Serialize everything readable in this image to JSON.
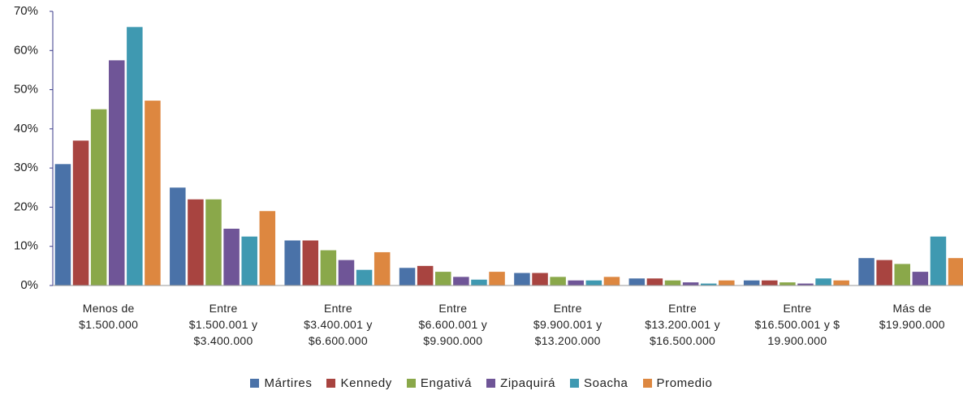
{
  "chart_data": {
    "type": "bar",
    "categories": [
      "Menos de\n$1.500.000",
      "Entre\n$1.500.001 y\n$3.400.000",
      "Entre\n$3.400.001 y\n$6.600.000",
      "Entre\n$6.600.001 y\n$9.900.000",
      "Entre\n$9.900.001 y\n$13.200.000",
      "Entre\n$13.200.001 y\n$16.500.000",
      "Entre\n$16.500.001 y $\n19.900.000",
      "Más de\n$19.900.000"
    ],
    "series": [
      {
        "name": "Mártires",
        "color": "#4a72a8",
        "values": [
          31,
          25,
          11.5,
          4.5,
          3.2,
          1.8,
          1.3,
          7
        ]
      },
      {
        "name": "Kennedy",
        "color": "#a84440",
        "values": [
          37,
          22,
          11.5,
          5,
          3.2,
          1.8,
          1.3,
          6.5
        ]
      },
      {
        "name": "Engativá",
        "color": "#8aa84a",
        "values": [
          45,
          22,
          9,
          3.5,
          2.2,
          1.3,
          0.8,
          5.5
        ]
      },
      {
        "name": "Zipaquirá",
        "color": "#6f5597",
        "values": [
          57.5,
          14.5,
          6.5,
          2.2,
          1.3,
          0.8,
          0.5,
          3.5
        ]
      },
      {
        "name": "Soacha",
        "color": "#3f99b1",
        "values": [
          66,
          12.5,
          4,
          1.5,
          1.3,
          0.5,
          1.8,
          12.5
        ]
      },
      {
        "name": "Promedio",
        "color": "#dd8740",
        "values": [
          47.2,
          19,
          8.5,
          3.5,
          2.2,
          1.3,
          1.3,
          7
        ]
      }
    ],
    "ylim": [
      0,
      70
    ],
    "yticks": [
      {
        "value": 0,
        "label": "0%"
      },
      {
        "value": 10,
        "label": "10%"
      },
      {
        "value": 20,
        "label": "20%"
      },
      {
        "value": 30,
        "label": "30%"
      },
      {
        "value": 40,
        "label": "40%"
      },
      {
        "value": 50,
        "label": "50%"
      },
      {
        "value": 60,
        "label": "60%"
      },
      {
        "value": 70,
        "label": "70%"
      }
    ],
    "legend": "bottom"
  }
}
